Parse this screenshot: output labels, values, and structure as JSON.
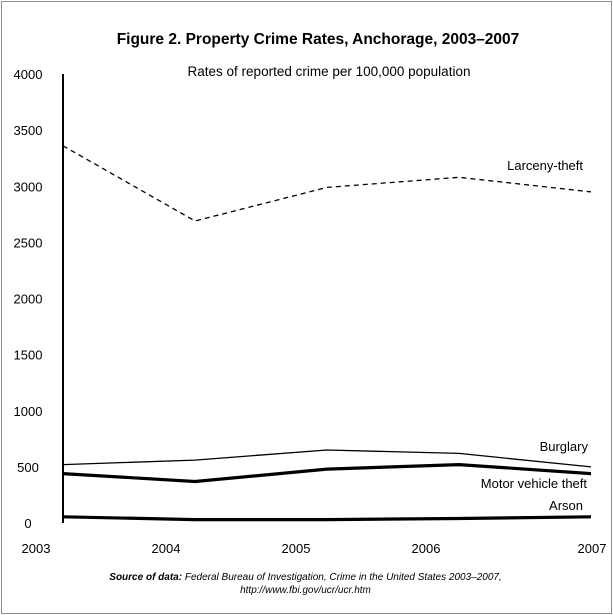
{
  "chart_data": {
    "type": "line",
    "title": "Figure 2. Property  Crime Rates, Anchorage, 2003–2007",
    "subtitle": "Rates of reported crime per 100,000 population",
    "x": [
      "2003",
      "2004",
      "2005",
      "2006",
      "2007"
    ],
    "yticks": [
      "0",
      "500",
      "1000",
      "1500",
      "2000",
      "2500",
      "3000",
      "3500",
      "4000"
    ],
    "ylim": [
      0,
      4000
    ],
    "grid": false,
    "legend": "labels next to lines",
    "series": [
      {
        "name": "Larceny-theft",
        "values": [
          3360,
          2690,
          2990,
          3080,
          2950
        ],
        "style": "dashed",
        "color": "#000000"
      },
      {
        "name": "Burglary",
        "values": [
          520,
          560,
          650,
          620,
          500
        ],
        "style": "thin",
        "color": "#000000"
      },
      {
        "name": "Motor vehicle theft",
        "values": [
          440,
          370,
          480,
          520,
          440
        ],
        "style": "thick",
        "color": "#000000"
      },
      {
        "name": "Arson",
        "values": [
          55,
          30,
          30,
          40,
          55
        ],
        "style": "thick",
        "color": "#000000"
      }
    ]
  },
  "source": {
    "head": "Source of data:",
    "text": " Federal Bureau of Investigation, Crime in the United States 2003–2007,",
    "url": "http://www.fbi.gov/ucr/ucr.htm"
  }
}
